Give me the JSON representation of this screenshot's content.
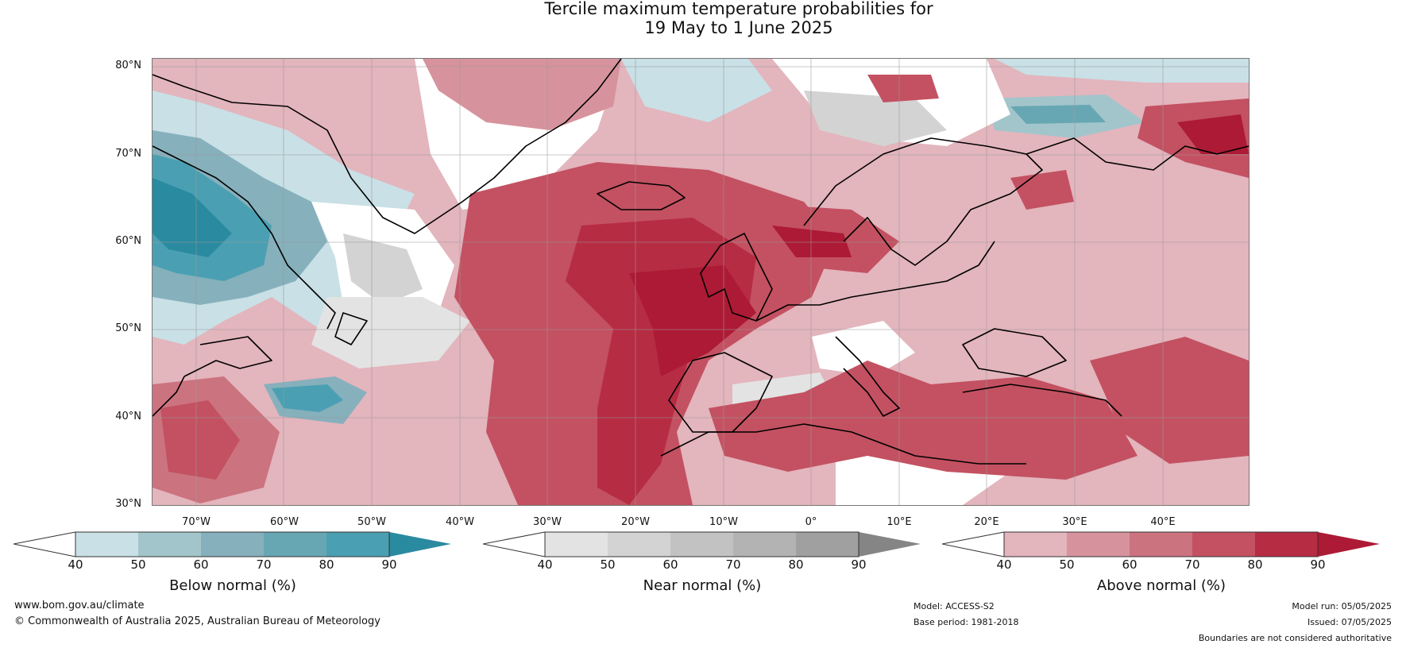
{
  "title": {
    "line1": "Tercile maximum temperature probabilities for",
    "line2": "19 May to 1 June 2025"
  },
  "map": {
    "lat_labels": [
      "80°N",
      "70°N",
      "60°N",
      "50°N",
      "40°N",
      "30°N"
    ],
    "lon_labels": [
      "70°W",
      "60°W",
      "50°W",
      "40°W",
      "30°W",
      "20°W",
      "10°W",
      "0°",
      "10°E",
      "20°E",
      "30°E",
      "40°E"
    ],
    "colors": {
      "below": [
        "#c8e0e6",
        "#a2c5cb",
        "#86b0bc",
        "#67a7b3",
        "#4aa0b2",
        "#2a8aa0"
      ],
      "near": [
        "#e3e3e3",
        "#d3d3d3",
        "#c2c2c2",
        "#b3b3b3",
        "#a0a0a0",
        "#858585"
      ],
      "above": [
        "#e3b5bd",
        "#d7939d",
        "#cc7380",
        "#c35161",
        "#b62c43",
        "#ad1a35"
      ]
    }
  },
  "colorbars": [
    {
      "label": "Below normal (%)",
      "ticks": [
        "40",
        "50",
        "60",
        "70",
        "80",
        "90"
      ],
      "key": "below"
    },
    {
      "label": "Near normal (%)",
      "ticks": [
        "40",
        "50",
        "60",
        "70",
        "80",
        "90"
      ],
      "key": "near"
    },
    {
      "label": "Above normal (%)",
      "ticks": [
        "40",
        "50",
        "60",
        "70",
        "80",
        "90"
      ],
      "key": "above"
    }
  ],
  "footer": {
    "website": "www.bom.gov.au/climate",
    "copyright": "© Commonwealth of Australia 2025, Australian Bureau of Meteorology",
    "model": "Model: ACCESS-S2",
    "base_period": "Base period: 1981-2018",
    "model_run": "Model run: 05/05/2025",
    "issued": "Issued: 07/05/2025",
    "disclaimer": "Boundaries are not considered authoritative"
  }
}
